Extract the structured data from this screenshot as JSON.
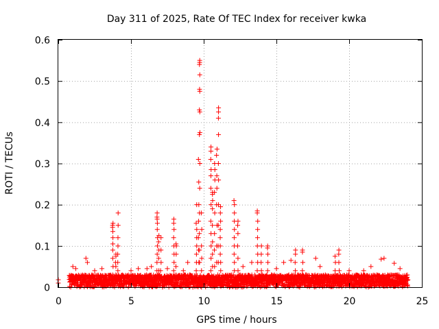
{
  "chart_data": {
    "type": "scatter",
    "title": "Day 311 of 2025, Rate Of TEC Index for receiver kwka",
    "xlabel": "GPS time / hours",
    "ylabel": "ROTI / TECUs",
    "xlim": [
      0,
      25
    ],
    "ylim": [
      0,
      0.6
    ],
    "xticks": [
      "0",
      "5",
      "10",
      "15",
      "20",
      "25"
    ],
    "yticks": [
      "0",
      "0.1",
      "0.2",
      "0.3",
      "0.4",
      "0.5",
      "0.6"
    ],
    "grid": true,
    "marker": "plus",
    "color": "#ff0000",
    "background_baseline": {
      "x_start": 0.75,
      "x_end": 24.05,
      "y_min": 0.0,
      "y_max": 0.03
    },
    "isolated_points": [
      {
        "x": 0.0,
        "y": 0.018
      },
      {
        "x": 0.0,
        "y": 0.01
      },
      {
        "x": 1.0,
        "y": 0.05
      },
      {
        "x": 1.2,
        "y": 0.045
      },
      {
        "x": 1.9,
        "y": 0.07
      },
      {
        "x": 2.0,
        "y": 0.06
      },
      {
        "x": 2.5,
        "y": 0.04
      },
      {
        "x": 3.0,
        "y": 0.045
      },
      {
        "x": 5.0,
        "y": 0.04
      },
      {
        "x": 5.5,
        "y": 0.045
      },
      {
        "x": 6.1,
        "y": 0.045
      },
      {
        "x": 6.4,
        "y": 0.05
      },
      {
        "x": 7.5,
        "y": 0.045
      },
      {
        "x": 8.6,
        "y": 0.04
      },
      {
        "x": 8.9,
        "y": 0.06
      },
      {
        "x": 12.7,
        "y": 0.05
      },
      {
        "x": 13.3,
        "y": 0.06
      },
      {
        "x": 15.0,
        "y": 0.045
      },
      {
        "x": 15.5,
        "y": 0.06
      },
      {
        "x": 16.0,
        "y": 0.065
      },
      {
        "x": 17.7,
        "y": 0.07
      },
      {
        "x": 18.0,
        "y": 0.05
      },
      {
        "x": 20.0,
        "y": 0.04
      },
      {
        "x": 21.0,
        "y": 0.04
      },
      {
        "x": 21.5,
        "y": 0.05
      },
      {
        "x": 22.2,
        "y": 0.068
      },
      {
        "x": 22.4,
        "y": 0.07
      },
      {
        "x": 23.1,
        "y": 0.058
      },
      {
        "x": 23.5,
        "y": 0.045
      }
    ],
    "peaks": [
      {
        "x": 3.75,
        "y": [
          0.03,
          0.05,
          0.07,
          0.09,
          0.105,
          0.12,
          0.135,
          0.145,
          0.15,
          0.155
        ]
      },
      {
        "x": 3.95,
        "y": [
          0.03,
          0.05,
          0.06,
          0.075,
          0.08
        ]
      },
      {
        "x": 4.1,
        "y": [
          0.04,
          0.06,
          0.08,
          0.1,
          0.12,
          0.15,
          0.18
        ]
      },
      {
        "x": 6.8,
        "y": [
          0.04,
          0.06,
          0.08,
          0.1,
          0.12,
          0.14,
          0.155,
          0.165,
          0.17,
          0.18
        ]
      },
      {
        "x": 6.9,
        "y": [
          0.04,
          0.07,
          0.09,
          0.11,
          0.125
        ]
      },
      {
        "x": 7.05,
        "y": [
          0.04,
          0.06,
          0.09,
          0.12
        ]
      },
      {
        "x": 7.95,
        "y": [
          0.04,
          0.06,
          0.08,
          0.1,
          0.12,
          0.14,
          0.155,
          0.165
        ]
      },
      {
        "x": 8.1,
        "y": [
          0.05,
          0.08,
          0.1,
          0.105
        ]
      },
      {
        "x": 9.5,
        "y": [
          0.04,
          0.06,
          0.08,
          0.1,
          0.12,
          0.14,
          0.155,
          0.2
        ]
      },
      {
        "x": 9.65,
        "y": [
          0.06,
          0.09,
          0.12,
          0.16,
          0.2,
          0.255,
          0.31
        ]
      },
      {
        "x": 9.72,
        "y": [
          0.06,
          0.09,
          0.13,
          0.18,
          0.24,
          0.3,
          0.37,
          0.375,
          0.425,
          0.43,
          0.475,
          0.48,
          0.515,
          0.54,
          0.545,
          0.55
        ]
      },
      {
        "x": 9.85,
        "y": [
          0.04,
          0.07,
          0.1,
          0.14,
          0.18
        ]
      },
      {
        "x": 10.5,
        "y": [
          0.04,
          0.07,
          0.1,
          0.13,
          0.16,
          0.2,
          0.24,
          0.27,
          0.285,
          0.31,
          0.33,
          0.34
        ]
      },
      {
        "x": 10.6,
        "y": [
          0.05,
          0.08,
          0.11,
          0.15,
          0.19,
          0.21,
          0.225,
          0.23
        ]
      },
      {
        "x": 10.75,
        "y": [
          0.05,
          0.09,
          0.13,
          0.18,
          0.23,
          0.26,
          0.285,
          0.3
        ]
      },
      {
        "x": 10.9,
        "y": [
          0.06,
          0.1,
          0.15,
          0.2,
          0.24,
          0.27,
          0.32,
          0.335
        ]
      },
      {
        "x": 11.0,
        "y": [
          0.06,
          0.1,
          0.15,
          0.2,
          0.26,
          0.3,
          0.37,
          0.41,
          0.425,
          0.435
        ]
      },
      {
        "x": 11.15,
        "y": [
          0.04,
          0.06,
          0.08,
          0.1,
          0.12,
          0.14,
          0.16,
          0.18,
          0.195
        ]
      },
      {
        "x": 12.1,
        "y": [
          0.04,
          0.06,
          0.08,
          0.1,
          0.12,
          0.14,
          0.16,
          0.18,
          0.2,
          0.21
        ]
      },
      {
        "x": 12.35,
        "y": [
          0.04,
          0.07,
          0.1,
          0.13,
          0.15,
          0.16
        ]
      },
      {
        "x": 13.7,
        "y": [
          0.04,
          0.06,
          0.08,
          0.1,
          0.12,
          0.14,
          0.16,
          0.18,
          0.185
        ]
      },
      {
        "x": 13.95,
        "y": [
          0.04,
          0.06,
          0.08,
          0.1
        ]
      },
      {
        "x": 14.4,
        "y": [
          0.04,
          0.06,
          0.08,
          0.095,
          0.1
        ]
      },
      {
        "x": 16.3,
        "y": [
          0.04,
          0.06,
          0.08,
          0.09
        ]
      },
      {
        "x": 16.8,
        "y": [
          0.04,
          0.06,
          0.085,
          0.09
        ]
      },
      {
        "x": 19.3,
        "y": [
          0.04,
          0.06,
          0.08,
          0.09
        ]
      },
      {
        "x": 19.05,
        "y": [
          0.04,
          0.06,
          0.075
        ]
      }
    ]
  }
}
